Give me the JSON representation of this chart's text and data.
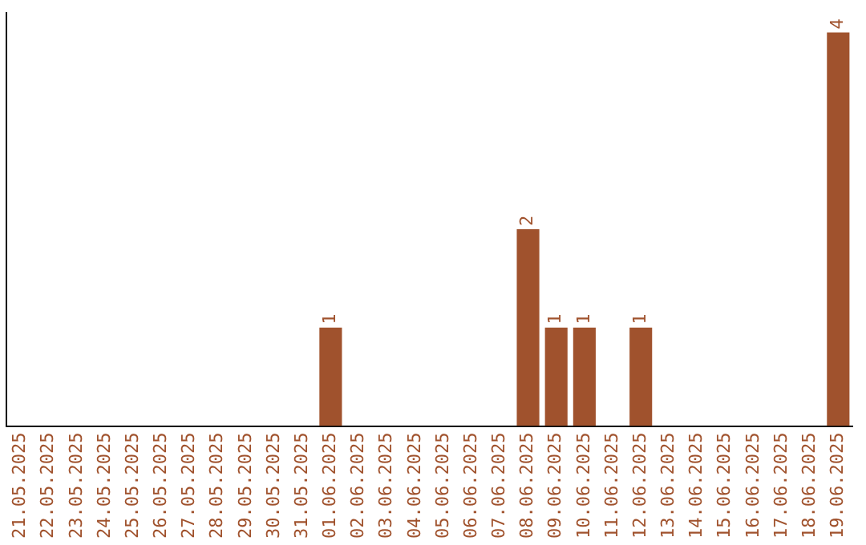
{
  "chart_data": {
    "type": "bar",
    "categories": [
      "21.05.2025",
      "22.05.2025",
      "23.05.2025",
      "24.05.2025",
      "25.05.2025",
      "26.05.2025",
      "27.05.2025",
      "28.05.2025",
      "29.05.2025",
      "30.05.2025",
      "31.05.2025",
      "01.06.2025",
      "02.06.2025",
      "03.06.2025",
      "04.06.2025",
      "05.06.2025",
      "06.06.2025",
      "07.06.2025",
      "08.06.2025",
      "09.06.2025",
      "10.06.2025",
      "11.06.2025",
      "12.06.2025",
      "13.06.2025",
      "14.06.2025",
      "15.06.2025",
      "16.06.2025",
      "17.06.2025",
      "18.06.2025",
      "19.06.2025"
    ],
    "values": [
      0,
      0,
      0,
      0,
      0,
      0,
      0,
      0,
      0,
      0,
      0,
      1,
      0,
      0,
      0,
      0,
      0,
      0,
      2,
      1,
      1,
      0,
      1,
      0,
      0,
      0,
      0,
      0,
      0,
      4
    ],
    "value_labels": [
      null,
      null,
      null,
      null,
      null,
      null,
      null,
      null,
      null,
      null,
      null,
      "1",
      null,
      null,
      null,
      null,
      null,
      null,
      "2",
      "1",
      "1",
      null,
      "1",
      null,
      null,
      null,
      null,
      null,
      null,
      "4"
    ],
    "color": "#a0522d",
    "ylim": [
      0,
      4.2
    ],
    "tick_labels": "x",
    "grid": false,
    "legend": false
  }
}
